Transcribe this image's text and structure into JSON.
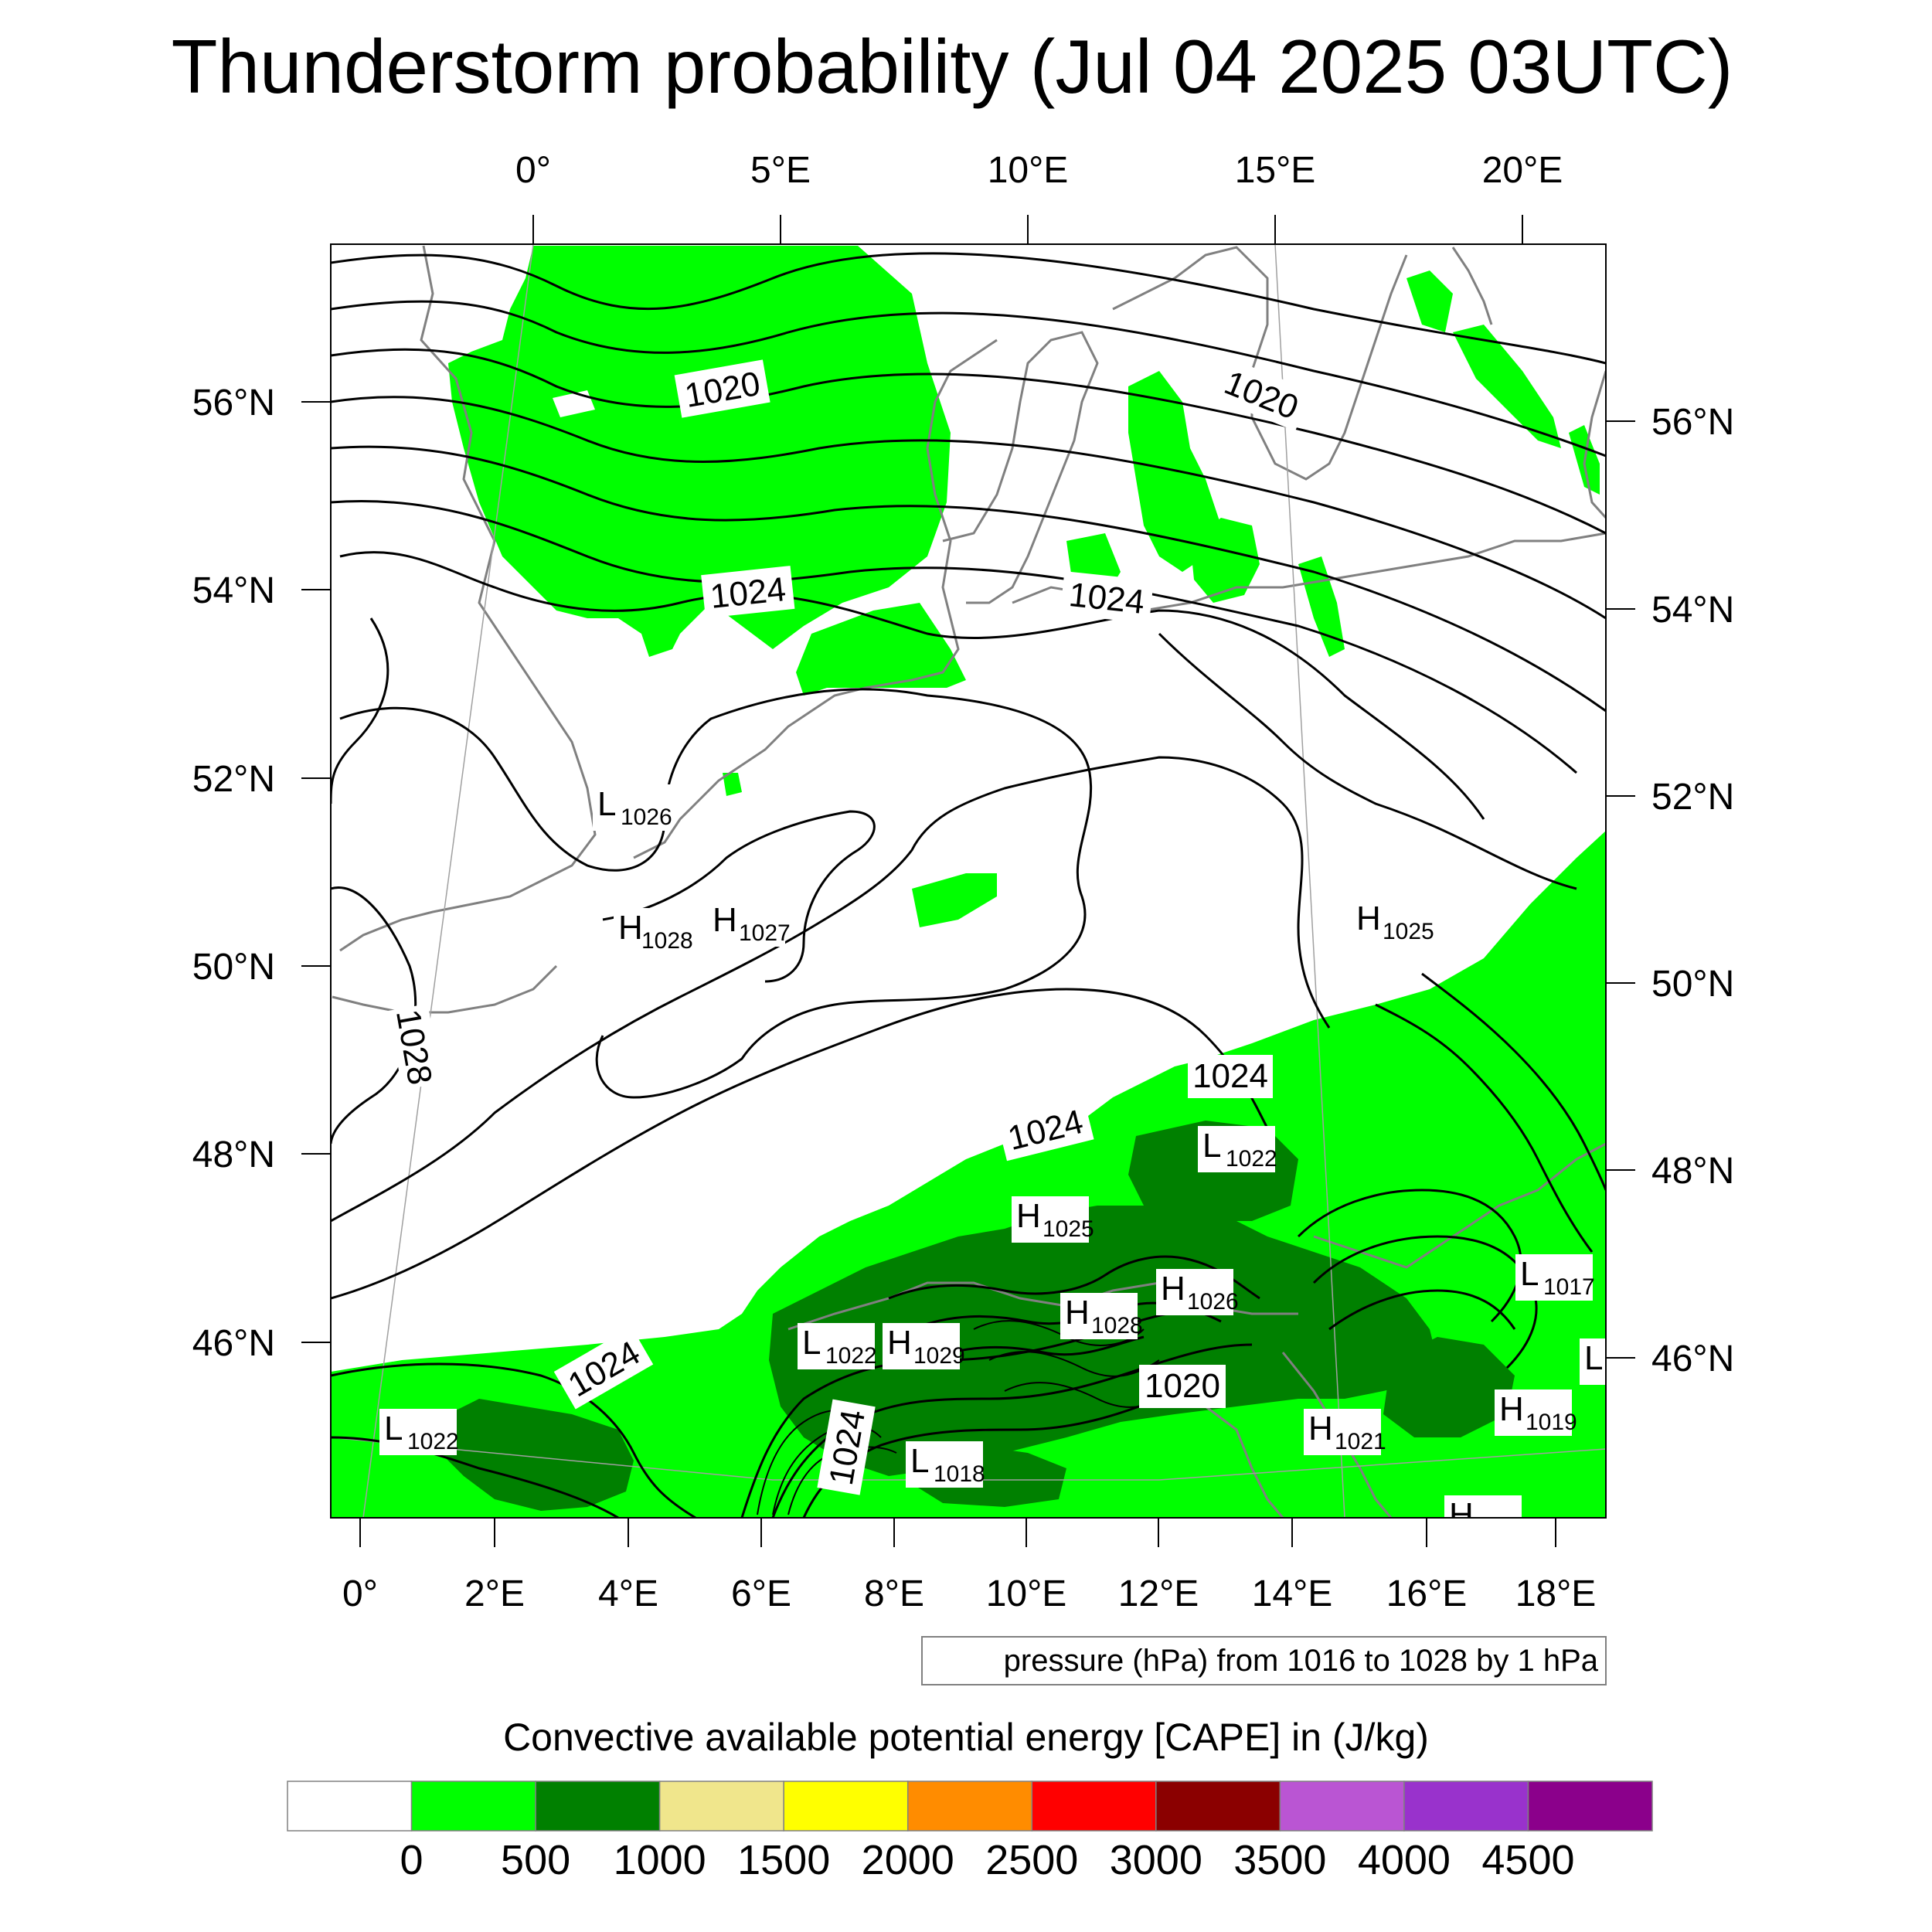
{
  "title": "Thunderstorm probability (Jul 04 2025 03UTC)",
  "top_axis": [
    "0°",
    "5°E",
    "10°E",
    "15°E",
    "20°E"
  ],
  "bottom_axis": [
    "0°",
    "2°E",
    "4°E",
    "6°E",
    "8°E",
    "10°E",
    "12°E",
    "14°E",
    "16°E",
    "18°E"
  ],
  "left_axis": [
    "56°N",
    "54°N",
    "52°N",
    "50°N",
    "48°N",
    "46°N"
  ],
  "right_axis": [
    "56°N",
    "54°N",
    "52°N",
    "50°N",
    "48°N",
    "46°N"
  ],
  "contour_labels": [
    "1020",
    "1020",
    "1024",
    "1024",
    "1028",
    "1024",
    "1024",
    "1024",
    "1024",
    "1020"
  ],
  "pressure_centers": [
    {
      "letter": "L",
      "value": "1026"
    },
    {
      "letter": "H",
      "value": "1028"
    },
    {
      "letter": "H",
      "value": "1027"
    },
    {
      "letter": "H",
      "value": "1025"
    },
    {
      "letter": "L",
      "value": "1022"
    },
    {
      "letter": "H",
      "value": "1025"
    },
    {
      "letter": "H",
      "value": "1026"
    },
    {
      "letter": "H",
      "value": "1028"
    },
    {
      "letter": "L",
      "value": "1022"
    },
    {
      "letter": "H",
      "value": "1029"
    },
    {
      "letter": "L",
      "value": "1017"
    },
    {
      "letter": "L",
      "value": ""
    },
    {
      "letter": "H",
      "value": "1019"
    },
    {
      "letter": "H",
      "value": "1021"
    },
    {
      "letter": "L",
      "value": "1022"
    },
    {
      "letter": "L",
      "value": "1018"
    },
    {
      "letter": "H",
      "value": "..."
    }
  ],
  "info_box": "pressure (hPa) from 1016 to 1028 by 1 hPa",
  "colorbar": {
    "title": "Convective available potential energy [CAPE] in (J/kg)",
    "colors": [
      "#ffffff",
      "#00ff00",
      "#008000",
      "#f0e68c",
      "#ffff00",
      "#ff8c00",
      "#ff0000",
      "#8b0000",
      "#ba55d3",
      "#9932cc",
      "#8b008b"
    ],
    "ticks": [
      "0",
      "500",
      "1000",
      "1500",
      "2000",
      "2500",
      "3000",
      "3500",
      "4000",
      "4500"
    ]
  },
  "fill_colors": {
    "cape_low": "#00ff00",
    "cape_mid": "#008000"
  }
}
